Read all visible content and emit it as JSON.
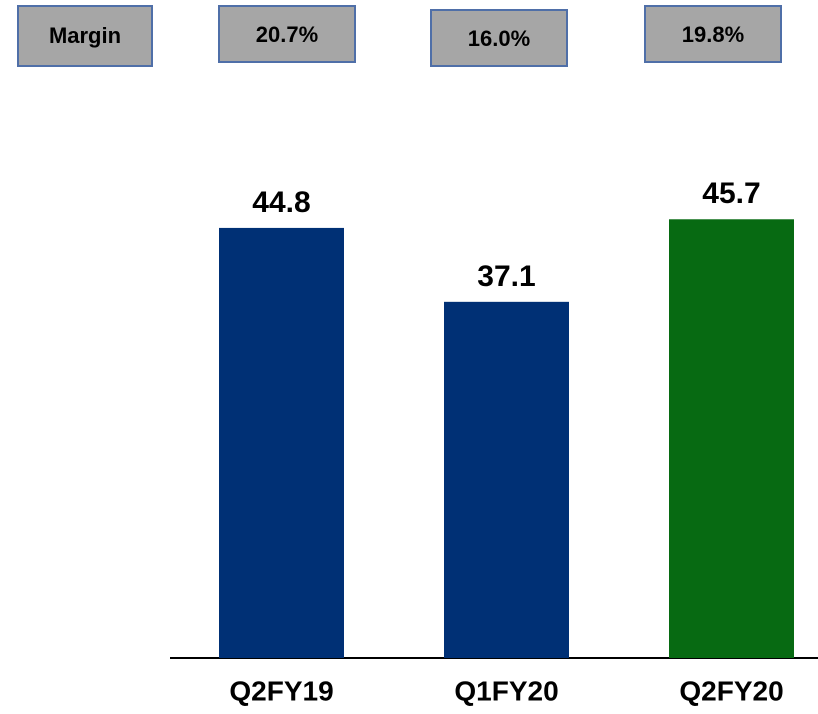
{
  "chart_data": {
    "type": "bar",
    "categories": [
      "Q2FY19",
      "Q1FY20",
      "Q2FY20"
    ],
    "values": [
      44.8,
      37.1,
      45.7
    ],
    "colors": [
      "#003075",
      "#003075",
      "#076a12"
    ],
    "margin": {
      "label": "Margin",
      "values": [
        20.7,
        16.0,
        19.8
      ],
      "value_labels": [
        "20.7%",
        "16.0%",
        "19.8%"
      ]
    }
  }
}
